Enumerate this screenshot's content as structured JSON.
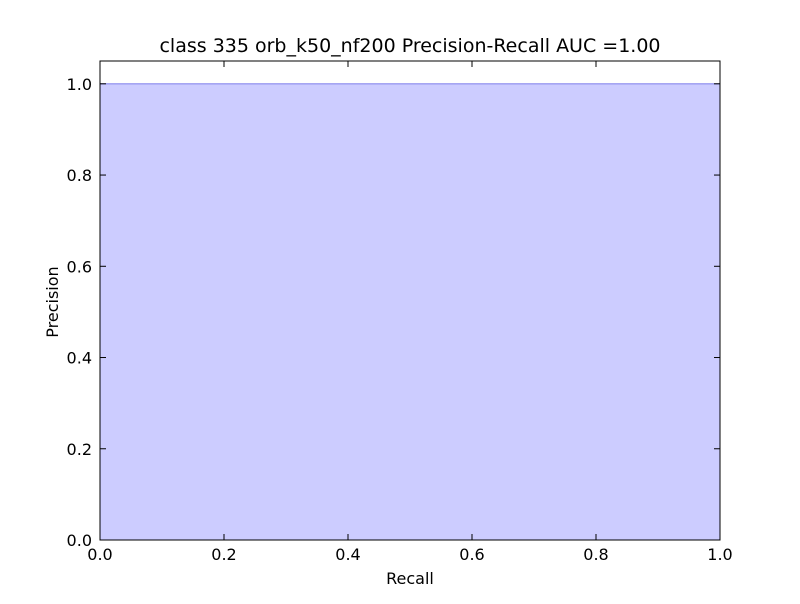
{
  "chart_data": {
    "type": "area",
    "title": "class 335 orb_k50_nf200 Precision-Recall AUC =1.00",
    "xlabel": "Recall",
    "ylabel": "Precision",
    "xlim": [
      0.0,
      1.0
    ],
    "ylim": [
      0.0,
      1.05
    ],
    "x_ticks": [
      "0.0",
      "0.2",
      "0.4",
      "0.6",
      "0.8",
      "1.0"
    ],
    "y_ticks": [
      "0.0",
      "0.2",
      "0.4",
      "0.6",
      "0.8",
      "1.0"
    ],
    "series": [
      {
        "x": [
          0.0,
          1.0
        ],
        "y": [
          1.0,
          1.0
        ],
        "fill_color": "#ccccff",
        "line_color": "#8888ee"
      }
    ],
    "grid": false,
    "legend": "none"
  }
}
